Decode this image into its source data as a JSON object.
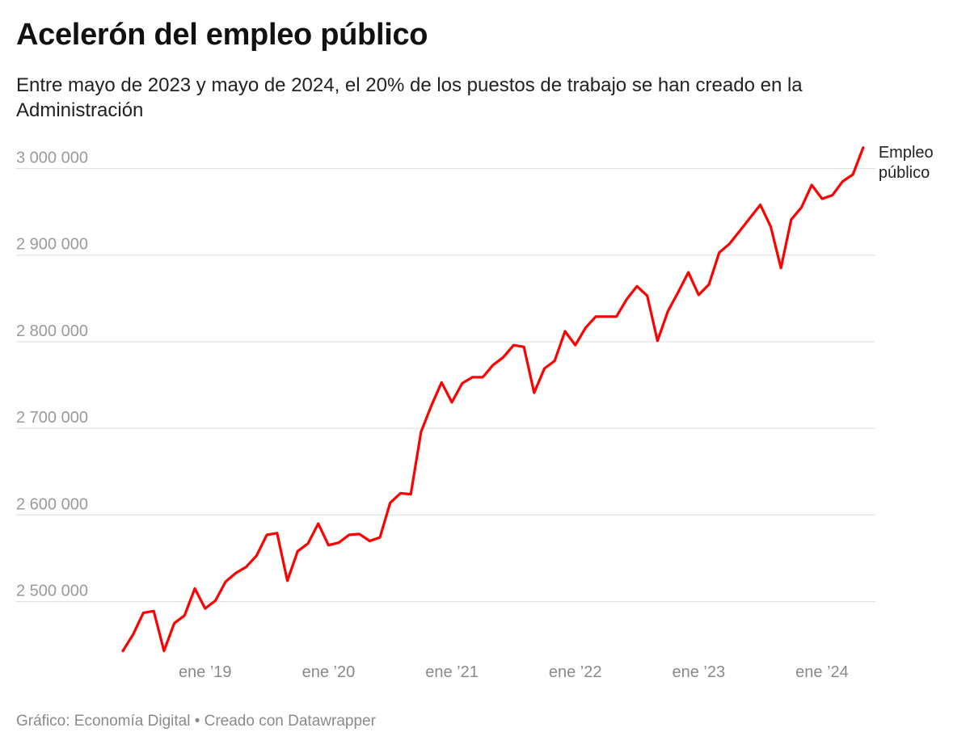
{
  "header": {
    "title": "Acelerón del empleo público",
    "subtitle": "Entre mayo de 2023 y mayo de 2024, el 20% de los puestos de trabajo se han creado en la Administración"
  },
  "footer": {
    "source": "Gráfico: Economía Digital • Creado con Datawrapper"
  },
  "colors": {
    "line": "#ff0000",
    "grid": "#dddddd",
    "tick_label": "#9a9a9a",
    "title": "#111111"
  },
  "chart_data": {
    "type": "line",
    "title": "Acelerón del empleo público",
    "xlabel": "",
    "ylabel": "",
    "grid": "horizontal",
    "legend": "direct label at line end (right)",
    "x_start": "2018-05",
    "x_frequency": "monthly",
    "x_tick_labels": [
      "ene ’19",
      "ene ’20",
      "ene ’21",
      "ene ’22",
      "ene ’23",
      "ene ’24"
    ],
    "x_tick_months": [
      "2019-01",
      "2020-01",
      "2021-01",
      "2022-01",
      "2023-01",
      "2024-01"
    ],
    "y_ticks": [
      2500000,
      2600000,
      2700000,
      2800000,
      2900000,
      3000000
    ],
    "y_tick_labels": [
      "2 500 000",
      "2 600 000",
      "2 700 000",
      "2 800 000",
      "2 900 000",
      "3 000 000"
    ],
    "ylim": [
      2430000,
      3030000
    ],
    "series": [
      {
        "name": "Empleo público",
        "label_lines": [
          "Empleo",
          "público"
        ],
        "color": "#ff0000",
        "values": [
          2443000,
          2462000,
          2487000,
          2489000,
          2443000,
          2475000,
          2484000,
          2515000,
          2492000,
          2501000,
          2523000,
          2533000,
          2540000,
          2553000,
          2577000,
          2579000,
          2524000,
          2558000,
          2567000,
          2590000,
          2565000,
          2568000,
          2577000,
          2578000,
          2570000,
          2574000,
          2614000,
          2625000,
          2624000,
          2696000,
          2726000,
          2753000,
          2730000,
          2752000,
          2759000,
          2759000,
          2773000,
          2782000,
          2796000,
          2794000,
          2741000,
          2769000,
          2778000,
          2812000,
          2796000,
          2816000,
          2829000,
          2829000,
          2829000,
          2849000,
          2864000,
          2853000,
          2801000,
          2835000,
          2857000,
          2880000,
          2854000,
          2866000,
          2903000,
          2913000,
          2928000,
          2943000,
          2958000,
          2933000,
          2885000,
          2941000,
          2955000,
          2981000,
          2965000,
          2969000,
          2985000,
          2993000,
          3024000
        ]
      }
    ]
  }
}
